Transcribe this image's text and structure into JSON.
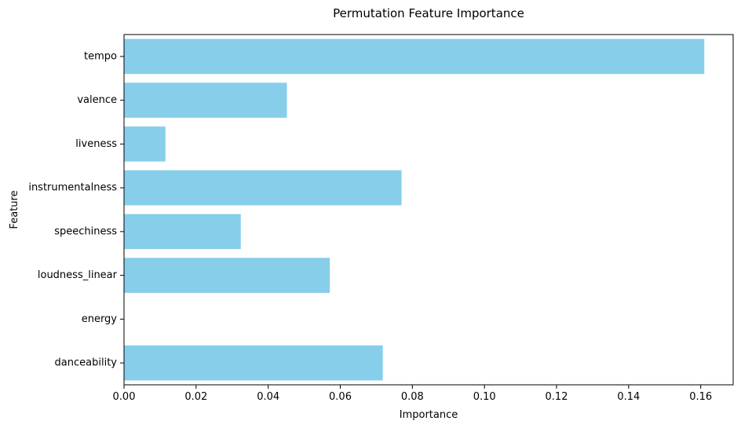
{
  "chart_data": {
    "type": "bar",
    "orientation": "horizontal",
    "title": "Permutation Feature Importance",
    "xlabel": "Importance",
    "ylabel": "Feature",
    "categories": [
      "danceability",
      "energy",
      "loudness_linear",
      "speechiness",
      "instrumentalness",
      "liveness",
      "valence",
      "tempo"
    ],
    "values": [
      0.0718,
      0.0,
      0.0571,
      0.0324,
      0.077,
      0.0115,
      0.0452,
      0.161
    ],
    "xlim": [
      0.0,
      0.169
    ],
    "xticks": [
      0.0,
      0.02,
      0.04,
      0.06,
      0.08,
      0.1,
      0.12,
      0.14,
      0.16
    ],
    "xtick_labels": [
      "0.00",
      "0.02",
      "0.04",
      "0.06",
      "0.08",
      "0.10",
      "0.12",
      "0.14",
      "0.16"
    ],
    "bar_color": "#87ceeb",
    "grid": false,
    "legend": "none"
  }
}
